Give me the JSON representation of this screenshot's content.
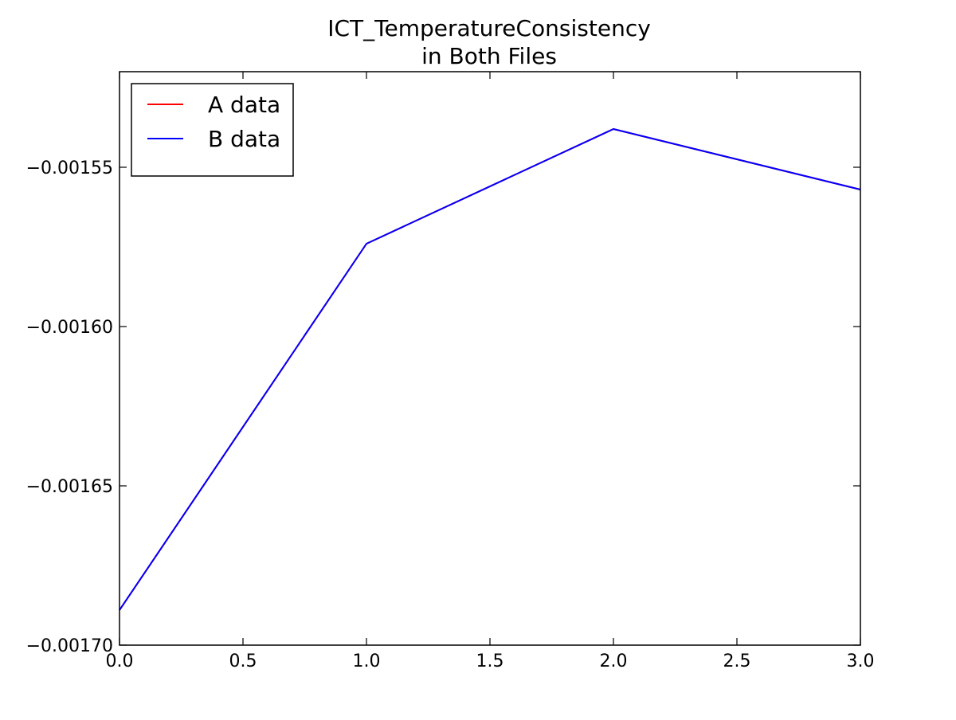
{
  "chart_data": {
    "type": "line",
    "title_lines": [
      "ICT_TemperatureConsistency",
      "in Both Files"
    ],
    "xlabel": "",
    "ylabel": "",
    "x": [
      0,
      1,
      2,
      3
    ],
    "xlim": [
      0.0,
      3.0
    ],
    "ylim": [
      -0.0017,
      -0.00152
    ],
    "xticks": [
      0.0,
      0.5,
      1.0,
      1.5,
      2.0,
      2.5,
      3.0
    ],
    "xtick_labels": [
      "0.0",
      "0.5",
      "1.0",
      "1.5",
      "2.0",
      "2.5",
      "3.0"
    ],
    "yticks": [
      -0.0017,
      -0.00165,
      -0.0016,
      -0.00155
    ],
    "ytick_labels": [
      "−0.00170",
      "−0.00165",
      "−0.00160",
      "−0.00155"
    ],
    "grid": false,
    "legend_position": "top-left",
    "series": [
      {
        "name": "A data",
        "color": "#ff0000",
        "values": [
          -0.001689,
          -0.001574,
          -0.001538,
          -0.001557
        ]
      },
      {
        "name": "B data",
        "color": "#0000ff",
        "values": [
          -0.001689,
          -0.001574,
          -0.001538,
          -0.001557
        ]
      }
    ]
  }
}
